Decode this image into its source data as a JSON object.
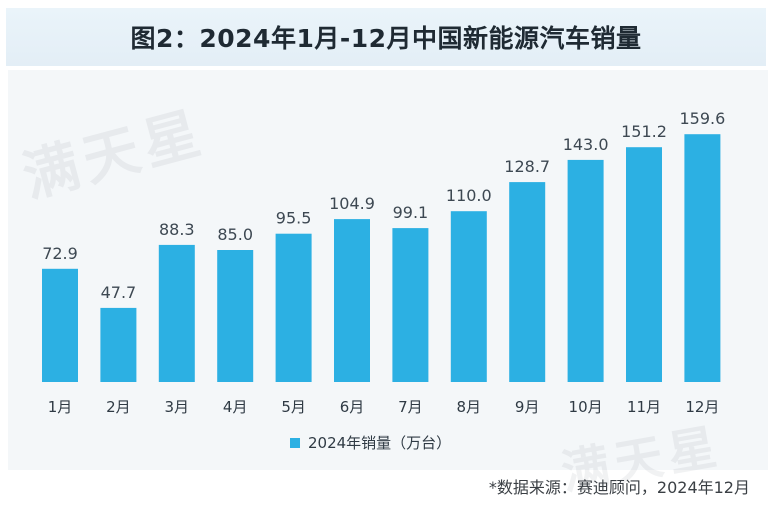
{
  "title": "图2：2024年1月-12月中国新能源汽车销量",
  "watermark": "满天星",
  "chart_data": {
    "type": "bar",
    "title": "图2：2024年1月-12月中国新能源汽车销量",
    "categories": [
      "1月",
      "2月",
      "3月",
      "4月",
      "5月",
      "6月",
      "7月",
      "8月",
      "9月",
      "10月",
      "11月",
      "12月"
    ],
    "series": [
      {
        "name": "2024年销量（万台）",
        "values": [
          72.9,
          47.7,
          88.3,
          85.0,
          95.5,
          104.9,
          99.1,
          110.0,
          128.7,
          143.0,
          151.2,
          159.6
        ]
      }
    ],
    "value_labels": [
      "72.9",
      "47.7",
      "88.3",
      "85.0",
      "95.5",
      "104.9",
      "99.1",
      "110.0",
      "128.7",
      "143.0",
      "151.2",
      "159.6"
    ],
    "xlabel": "",
    "ylabel": "",
    "ylim": [
      0,
      170
    ],
    "grid": false,
    "legend_position": "bottom-center",
    "bar_color": "#2cb0e3"
  },
  "legend": {
    "label": "2024年销量（万台）"
  },
  "source": "*数据来源：赛迪顾问，2024年12月"
}
